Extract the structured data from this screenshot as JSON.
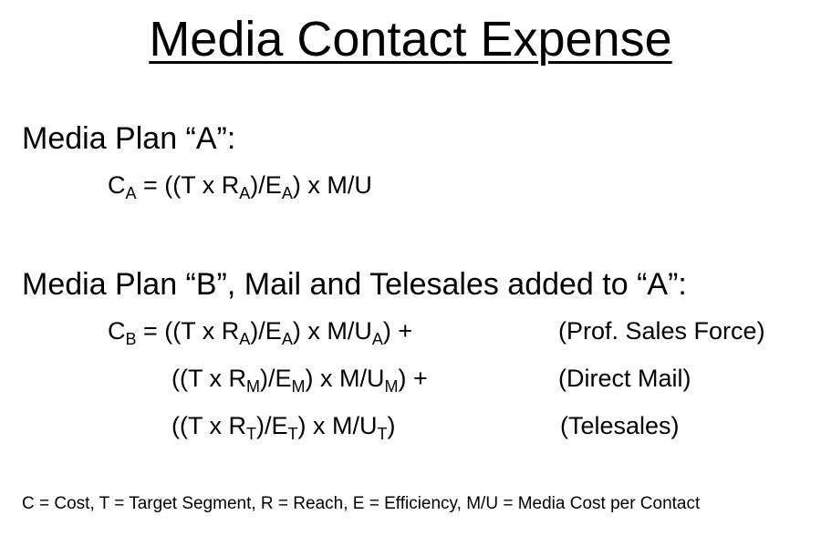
{
  "title": "Media Contact Expense",
  "plan_a": {
    "heading": "Media Plan “A”:",
    "equation": {
      "lhs": "C",
      "lhs_sub": "A",
      "p1": " = ((T x R",
      "s1": "A",
      "p2": ")/E",
      "s2": "A",
      "p3": ") x M/U"
    }
  },
  "plan_b": {
    "heading": "Media Plan “B”, Mail and Telesales added to “A”:",
    "line1": {
      "lhs": "C",
      "lhs_sub": "B",
      "p1": " = ((T x R",
      "s1": "A",
      "p2": ")/E",
      "s2": "A",
      "p3": ") x M/U",
      "s3": "A",
      "p4": ") +",
      "note": "(Prof. Sales Force)"
    },
    "line2": {
      "p1": "((T x R",
      "s1": "M",
      "p2": ")/E",
      "s2": "M",
      "p3": ") x M/U",
      "s3": "M",
      "p4": ") +",
      "note": "(Direct Mail)"
    },
    "line3": {
      "p1": "((T x R",
      "s1": "T",
      "p2": ")/E",
      "s2": "T",
      "p3": ") x M/U",
      "s3": "T",
      "p4": ")",
      "note": "(Telesales)"
    }
  },
  "legend": "C = Cost, T = Target Segment, R = Reach, E = Efficiency, M/U = Media Cost per Contact"
}
